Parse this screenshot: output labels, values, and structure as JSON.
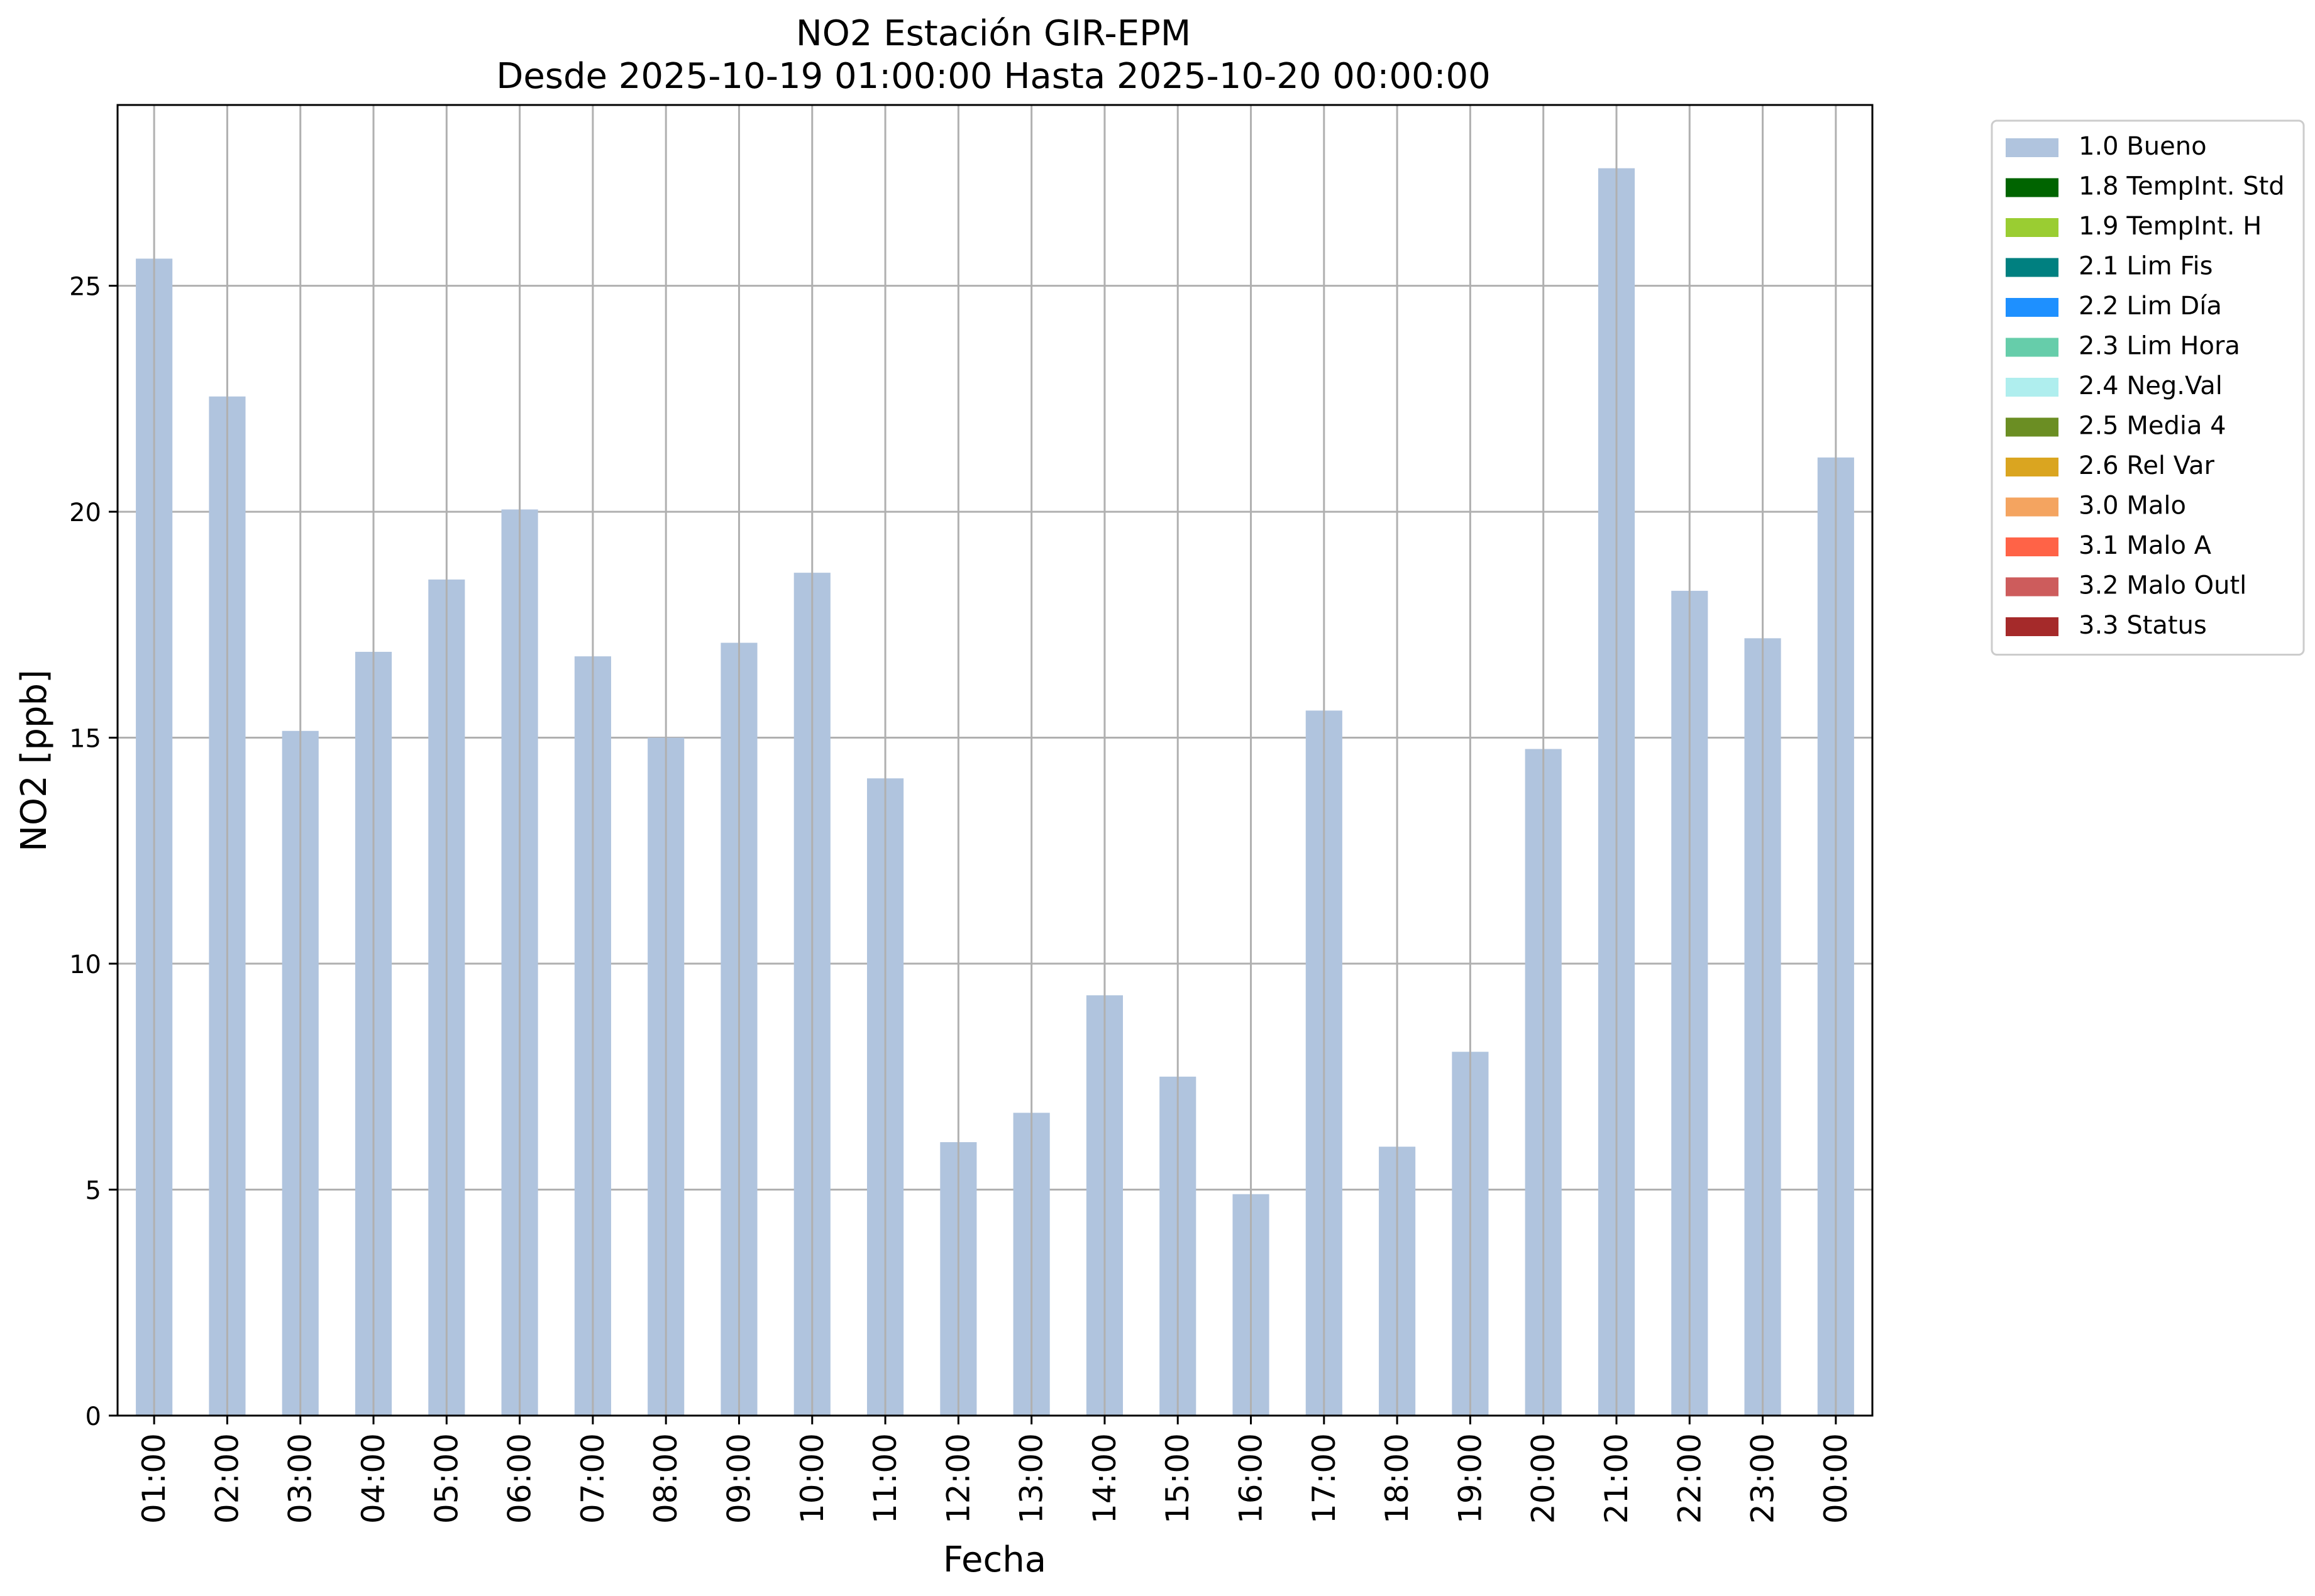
{
  "chart_data": {
    "type": "bar",
    "title": "NO2 Estación GIR-EPM",
    "subtitle": "Desde 2025-10-19 01:00:00 Hasta 2025-10-20 00:00:00",
    "xlabel": "Fecha",
    "ylabel": "NO2 [ppb]",
    "ylim": [
      0,
      29
    ],
    "yticks": [
      0,
      5,
      10,
      15,
      20,
      25
    ],
    "grid": true,
    "legend_position": "outside-top-right",
    "categories": [
      "01:00",
      "02:00",
      "03:00",
      "04:00",
      "05:00",
      "06:00",
      "07:00",
      "08:00",
      "09:00",
      "10:00",
      "11:00",
      "12:00",
      "13:00",
      "14:00",
      "15:00",
      "16:00",
      "17:00",
      "18:00",
      "19:00",
      "20:00",
      "21:00",
      "22:00",
      "23:00",
      "00:00"
    ],
    "series": [
      {
        "name": "1.0 Bueno",
        "color": "#b0c4de",
        "values": [
          25.6,
          22.55,
          15.15,
          16.9,
          18.5,
          20.05,
          16.8,
          15.0,
          17.1,
          18.65,
          14.1,
          6.05,
          6.7,
          9.3,
          7.5,
          4.9,
          15.6,
          5.95,
          8.05,
          14.75,
          27.6,
          18.25,
          17.2,
          21.2
        ]
      }
    ],
    "legend": [
      {
        "label": "1.0 Bueno",
        "color": "#b0c4de"
      },
      {
        "label": "1.8 TempInt. Std",
        "color": "#006400"
      },
      {
        "label": "1.9 TempInt. H",
        "color": "#9acd32"
      },
      {
        "label": "2.1 Lim Fis",
        "color": "#008080"
      },
      {
        "label": "2.2 Lim Día",
        "color": "#1e90ff"
      },
      {
        "label": "2.3 Lim Hora",
        "color": "#66cdaa"
      },
      {
        "label": "2.4 Neg.Val",
        "color": "#afeeee"
      },
      {
        "label": "2.5 Media 4",
        "color": "#6b8e23"
      },
      {
        "label": "2.6 Rel Var",
        "color": "#daa520"
      },
      {
        "label": "3.0 Malo",
        "color": "#f4a460"
      },
      {
        "label": "3.1 Malo A",
        "color": "#ff6347"
      },
      {
        "label": "3.2 Malo Outl",
        "color": "#cd5c5c"
      },
      {
        "label": "3.3 Status",
        "color": "#a52a2a"
      }
    ]
  }
}
